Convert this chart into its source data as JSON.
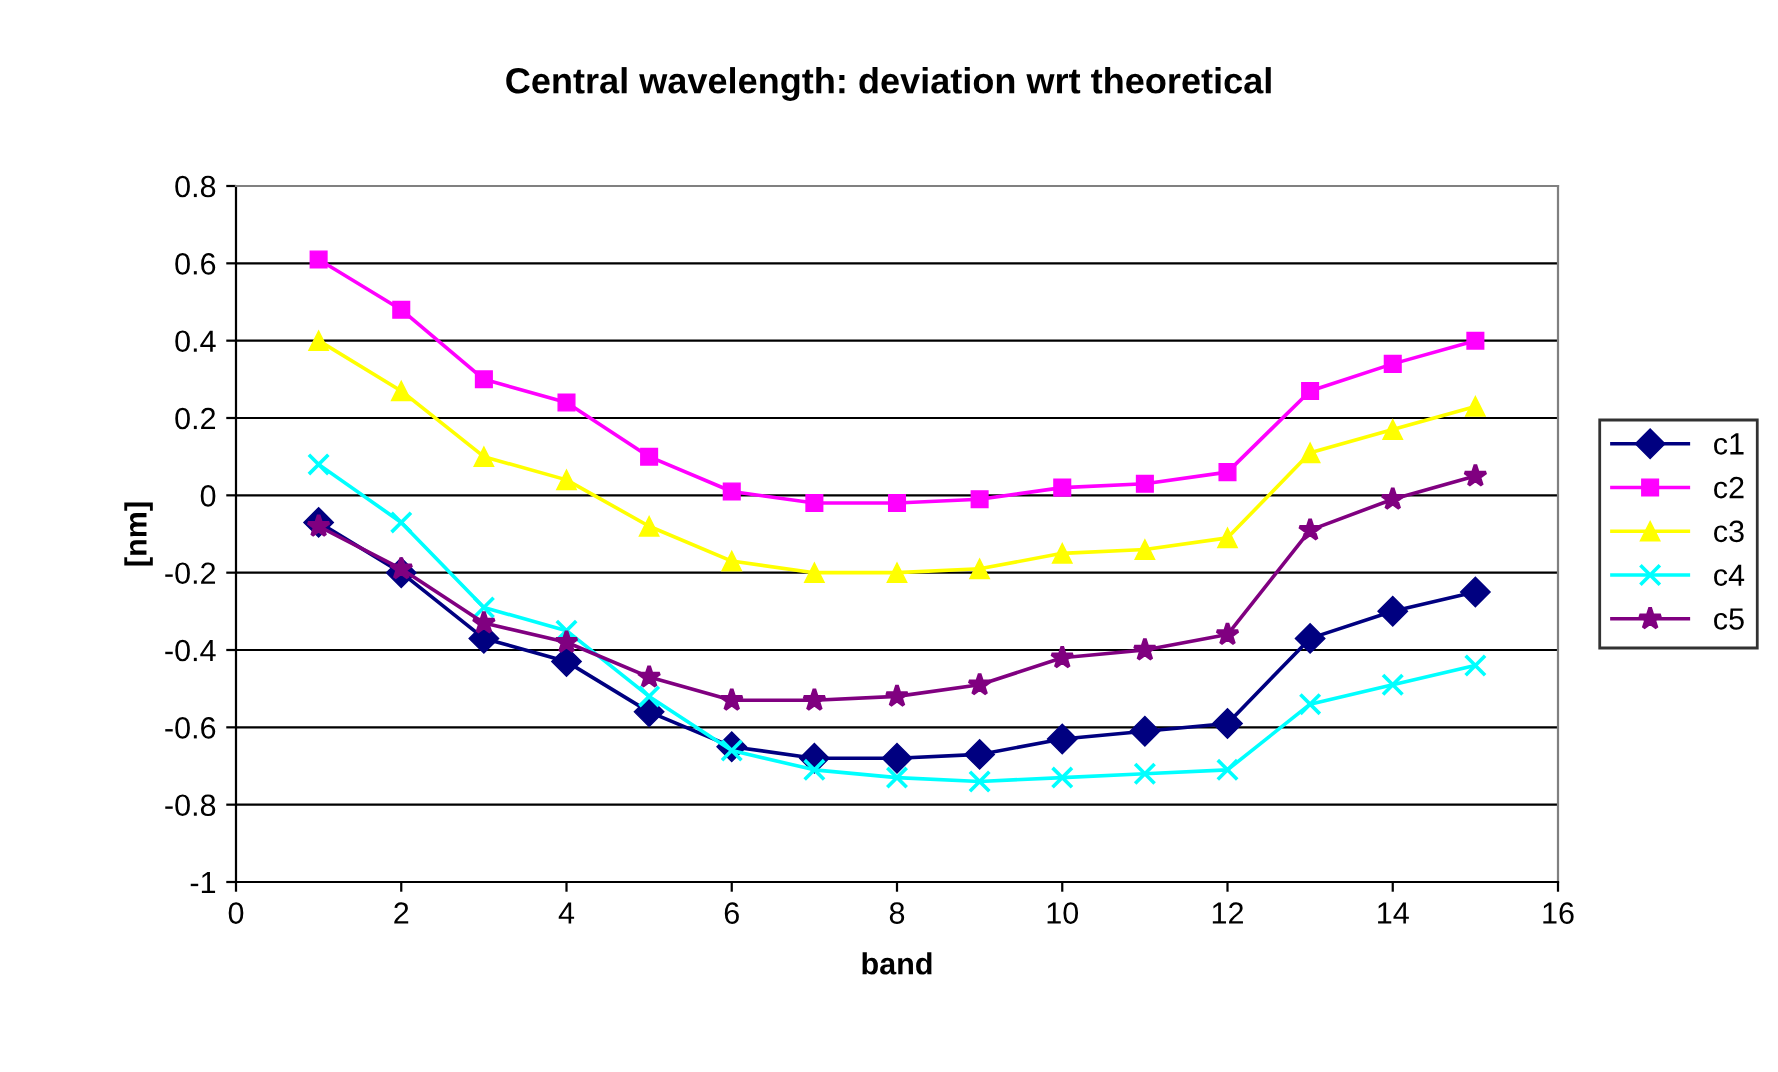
{
  "chart_data": {
    "type": "line",
    "title": "Central wavelength: deviation wrt theoretical",
    "xlabel": "band",
    "ylabel": "[nm]",
    "x": [
      1,
      2,
      3,
      4,
      5,
      6,
      7,
      8,
      9,
      10,
      11,
      12,
      13,
      14,
      15
    ],
    "xlim": [
      0,
      16
    ],
    "xticks": [
      0,
      2,
      4,
      6,
      8,
      10,
      12,
      14,
      16
    ],
    "ylim": [
      -1,
      0.8
    ],
    "yticks": [
      -1,
      -0.8,
      -0.6,
      -0.4,
      -0.2,
      0,
      0.2,
      0.4,
      0.6,
      0.8
    ],
    "grid": "y",
    "legend": "right",
    "series": [
      {
        "name": "c1",
        "color": "#000080",
        "marker": "diamond",
        "values": [
          -0.07,
          -0.2,
          -0.37,
          -0.43,
          -0.56,
          -0.65,
          -0.68,
          -0.68,
          -0.67,
          -0.63,
          -0.61,
          -0.59,
          -0.37,
          -0.3,
          -0.25
        ]
      },
      {
        "name": "c2",
        "color": "#ff00ff",
        "marker": "square",
        "values": [
          0.61,
          0.48,
          0.3,
          0.24,
          0.1,
          0.01,
          -0.02,
          -0.02,
          -0.01,
          0.02,
          0.03,
          0.06,
          0.27,
          0.34,
          0.4
        ]
      },
      {
        "name": "c3",
        "color": "#ffff00",
        "marker": "triangle",
        "values": [
          0.4,
          0.27,
          0.1,
          0.04,
          -0.08,
          -0.17,
          -0.2,
          -0.2,
          -0.19,
          -0.15,
          -0.14,
          -0.11,
          0.11,
          0.17,
          0.23
        ]
      },
      {
        "name": "c4",
        "color": "#00ffff",
        "marker": "cross",
        "values": [
          0.08,
          -0.07,
          -0.29,
          -0.35,
          -0.52,
          -0.66,
          -0.71,
          -0.73,
          -0.74,
          -0.73,
          -0.72,
          -0.71,
          -0.54,
          -0.49,
          -0.44
        ]
      },
      {
        "name": "c5",
        "color": "#800080",
        "marker": "star",
        "values": [
          -0.08,
          -0.19,
          -0.33,
          -0.38,
          -0.47,
          -0.53,
          -0.53,
          -0.52,
          -0.49,
          -0.42,
          -0.4,
          -0.36,
          -0.09,
          -0.01,
          0.05
        ]
      }
    ]
  }
}
